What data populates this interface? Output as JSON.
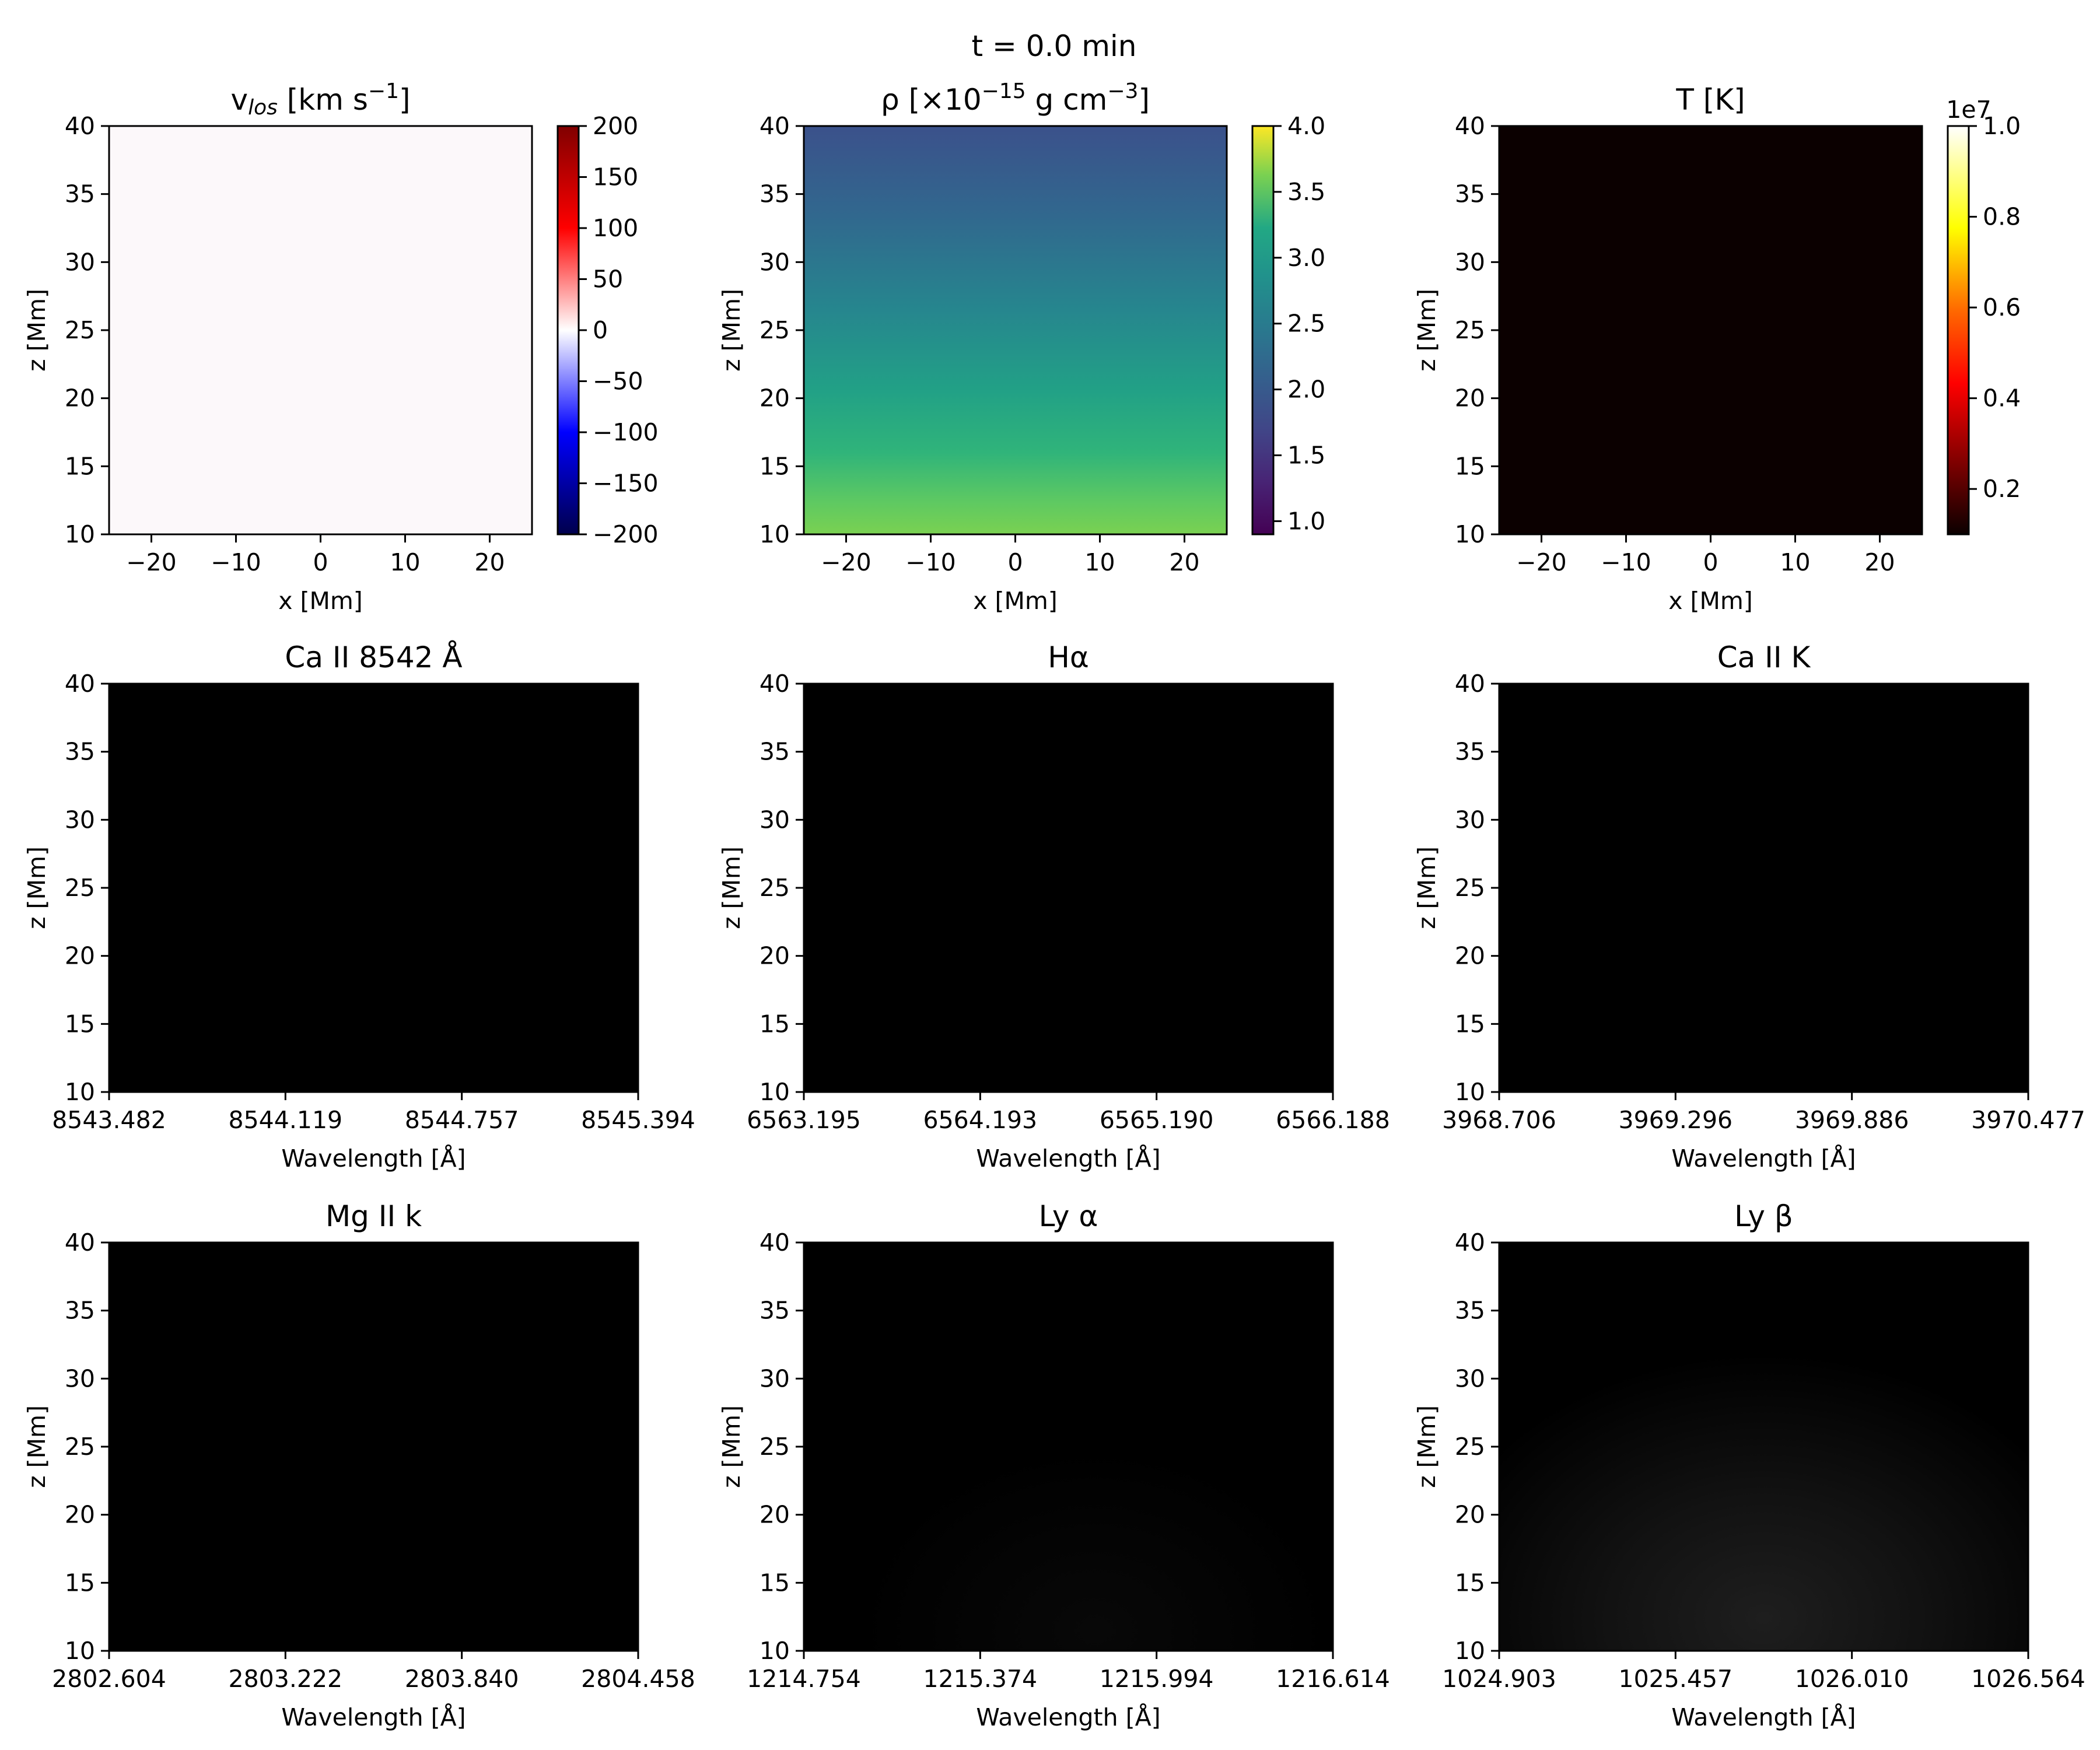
{
  "suptitle": "t = 0.0 min",
  "colors": {
    "spectral_fill": "#000000",
    "temperature_fill": "#0b0000",
    "velocity_fill": "#fcf8fa"
  },
  "chart_data": [
    {
      "type": "heatmap",
      "title_parts": [
        "v",
        "los",
        " [km s",
        "−1",
        "]"
      ],
      "xlabel": "x [Mm]",
      "ylabel": "z [Mm]",
      "xlim": [
        -25,
        25
      ],
      "ylim": [
        10,
        40
      ],
      "xticks": [
        -20,
        -10,
        0,
        10,
        20
      ],
      "xticklabels": [
        "−20",
        "−10",
        "0",
        "10",
        "20"
      ],
      "yticks": [
        10,
        15,
        20,
        25,
        30,
        35,
        40
      ],
      "colormap": "seismic",
      "colorbar": {
        "range": [
          -200,
          200
        ],
        "ticks": [
          200,
          150,
          100,
          50,
          0,
          -50,
          -100,
          -150,
          -200
        ],
        "ticklabels": [
          "200",
          "150",
          "100",
          "50",
          "0",
          "−50",
          "−100",
          "−150",
          "−200"
        ]
      },
      "field": "uniform, ~0 km/s"
    },
    {
      "type": "heatmap",
      "title_parts": [
        "ρ [×10",
        "−15",
        " g cm",
        "−3",
        "]"
      ],
      "xlabel": "x [Mm]",
      "ylabel": "z [Mm]",
      "xlim": [
        -25,
        25
      ],
      "ylim": [
        10,
        40
      ],
      "xticks": [
        -20,
        -10,
        0,
        10,
        20
      ],
      "xticklabels": [
        "−20",
        "−10",
        "0",
        "10",
        "20"
      ],
      "yticks": [
        10,
        15,
        20,
        25,
        30,
        35,
        40
      ],
      "colormap": "viridis",
      "colorbar": {
        "range": [
          0.9,
          4.0
        ],
        "ticks": [
          4.0,
          3.5,
          3.0,
          2.5,
          2.0,
          1.5,
          1.0
        ],
        "ticklabels": [
          "4.0",
          "3.5",
          "3.0",
          "2.5",
          "2.0",
          "1.5",
          "1.0"
        ]
      },
      "vertical_profile": {
        "z": [
          10,
          20,
          30,
          40
        ],
        "rho": [
          3.25,
          2.55,
          2.1,
          1.8
        ]
      }
    },
    {
      "type": "heatmap",
      "title": "T [K]",
      "xlabel": "x [Mm]",
      "ylabel": "z [Mm]",
      "xlim": [
        -25,
        25
      ],
      "ylim": [
        10,
        40
      ],
      "xticks": [
        -20,
        -10,
        0,
        10,
        20
      ],
      "xticklabels": [
        "−20",
        "−10",
        "0",
        "10",
        "20"
      ],
      "yticks": [
        10,
        15,
        20,
        25,
        30,
        35,
        40
      ],
      "colormap": "hot",
      "colorbar": {
        "range": [
          0.1,
          1.0
        ],
        "ticks": [
          1.0,
          0.8,
          0.6,
          0.4,
          0.2
        ],
        "ticklabels": [
          "1.0",
          "0.8",
          "0.6",
          "0.4",
          "0.2"
        ],
        "offset_label": "1e7"
      },
      "field": "uniform, ~1e6 K"
    },
    {
      "type": "heatmap",
      "title": "Ca II 8542 Å",
      "xlabel": "Wavelength [Å]",
      "ylabel": "z [Mm]",
      "xticklabels": [
        "8543.482",
        "8544.119",
        "8544.757",
        "8545.394"
      ],
      "yticks": [
        10,
        15,
        20,
        25,
        30,
        35,
        40
      ],
      "ylim": [
        10,
        40
      ]
    },
    {
      "type": "heatmap",
      "title": "Hα",
      "xlabel": "Wavelength [Å]",
      "ylabel": "z [Mm]",
      "xticklabels": [
        "6563.195",
        "6564.193",
        "6565.190",
        "6566.188"
      ],
      "yticks": [
        10,
        15,
        20,
        25,
        30,
        35,
        40
      ],
      "ylim": [
        10,
        40
      ]
    },
    {
      "type": "heatmap",
      "title": "Ca II K",
      "xlabel": "Wavelength [Å]",
      "ylabel": "z [Mm]",
      "xticklabels": [
        "3968.706",
        "3969.296",
        "3969.886",
        "3970.477"
      ],
      "yticks": [
        10,
        15,
        20,
        25,
        30,
        35,
        40
      ],
      "ylim": [
        10,
        40
      ]
    },
    {
      "type": "heatmap",
      "title": "Mg II k",
      "xlabel": "Wavelength [Å]",
      "ylabel": "z [Mm]",
      "xticklabels": [
        "2802.604",
        "2803.222",
        "2803.840",
        "2804.458"
      ],
      "yticks": [
        10,
        15,
        20,
        25,
        30,
        35,
        40
      ],
      "ylim": [
        10,
        40
      ]
    },
    {
      "type": "heatmap",
      "title": "Ly α",
      "xlabel": "Wavelength [Å]",
      "ylabel": "z [Mm]",
      "xticklabels": [
        "1214.754",
        "1215.374",
        "1215.994",
        "1216.614"
      ],
      "yticks": [
        10,
        15,
        20,
        25,
        30,
        35,
        40
      ],
      "ylim": [
        10,
        40
      ],
      "faint_glow": true
    },
    {
      "type": "heatmap",
      "title": "Ly β",
      "xlabel": "Wavelength [Å]",
      "ylabel": "z [Mm]",
      "xticklabels": [
        "1024.903",
        "1025.457",
        "1026.010",
        "1026.564"
      ],
      "yticks": [
        10,
        15,
        20,
        25,
        30,
        35,
        40
      ],
      "ylim": [
        10,
        40
      ],
      "faint_glow": true
    }
  ]
}
